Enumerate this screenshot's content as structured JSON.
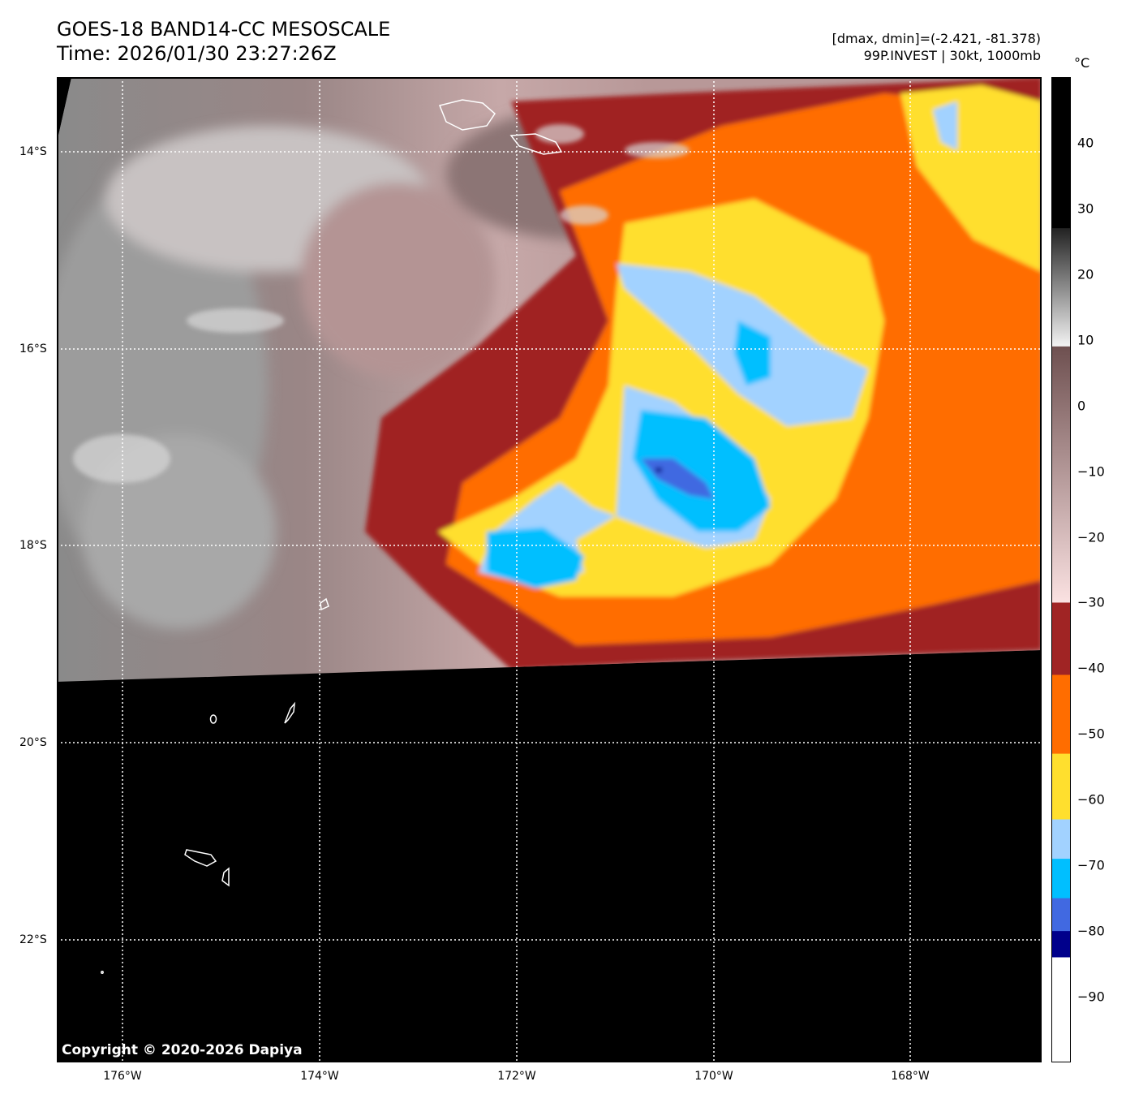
{
  "header": {
    "title": "GOES-18 BAND14-CC MESOSCALE",
    "time": "Time: 2026/01/30 23:27:26Z",
    "range_info": "[dmax, dmin]=(-2.421, -81.378)",
    "storm_info": "99P.INVEST | 30kt, 1000mb"
  },
  "map": {
    "lon_range": [
      -176.66,
      -166.66
    ],
    "lat_range": [
      -23.25,
      -13.25
    ],
    "lon_labels": [
      "176°W",
      "174°W",
      "172°W",
      "170°W",
      "168°W"
    ],
    "lon_values": [
      -176,
      -174,
      -172,
      -170,
      -168
    ],
    "lat_labels": [
      "14°S",
      "16°S",
      "18°S",
      "20°S",
      "22°S"
    ],
    "lat_values": [
      -14,
      -16,
      -18,
      -20,
      -22
    ],
    "copyright": "Copyright © 2020-2026 Dapiya"
  },
  "colorbar": {
    "unit": "°C",
    "range": [
      -100,
      50
    ],
    "tick_labels": [
      "40",
      "30",
      "20",
      "10",
      "0",
      "−10",
      "−20",
      "−30",
      "−40",
      "−50",
      "−60",
      "−70",
      "−80",
      "−90"
    ],
    "tick_values": [
      40,
      30,
      20,
      10,
      0,
      -10,
      -20,
      -30,
      -40,
      -50,
      -60,
      -70,
      -80,
      -90
    ],
    "stops": [
      {
        "from": 50,
        "to": 27,
        "color": "#000000"
      },
      {
        "from": 27,
        "to": 9,
        "color": "gradient-gray",
        "c1": "#222222",
        "c2": "#f4f4f4"
      },
      {
        "from": 9,
        "to": -30,
        "color": "gradient-brown",
        "c1": "#6e5050",
        "c2": "#fbe2e2"
      },
      {
        "from": -30,
        "to": -41,
        "color": "#a02424"
      },
      {
        "from": -41,
        "to": -53,
        "color": "#ff6d00"
      },
      {
        "from": -53,
        "to": -63,
        "color": "#ffdf2e"
      },
      {
        "from": -63,
        "to": -69,
        "color": "#a2d2ff"
      },
      {
        "from": -69,
        "to": -75,
        "color": "#00bfff"
      },
      {
        "from": -75,
        "to": -80,
        "color": "#4169e1"
      },
      {
        "from": -80,
        "to": -84,
        "color": "#00008b"
      },
      {
        "from": -84,
        "to": -100,
        "color": "#ffffff"
      }
    ]
  }
}
